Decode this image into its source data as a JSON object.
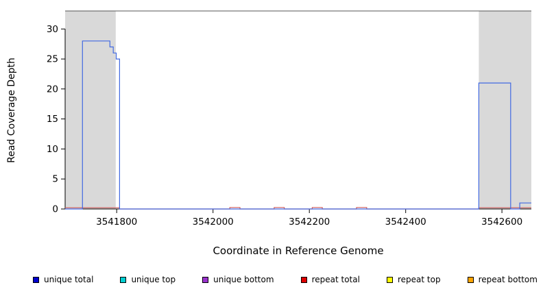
{
  "chart_data": {
    "type": "line",
    "title": "",
    "xlabel": "Coordinate in Reference Genome",
    "ylabel": "Read Coverage Depth",
    "xlim": [
      3541693,
      3542661
    ],
    "ylim": [
      0,
      33
    ],
    "xticks": [
      3541800,
      3542000,
      3542200,
      3542400,
      3542600
    ],
    "yticks": [
      0,
      5,
      10,
      15,
      20,
      25,
      30
    ],
    "grid": false,
    "legend_position": "bottom",
    "frame": {
      "top_border_color": "#555555",
      "axis_color": "#000000",
      "shading_color": "#d9d9d9"
    },
    "background_shading": [
      {
        "x0": 3541693,
        "x1": 3541798,
        "color": "#d9d9d9"
      },
      {
        "x0": 3542552,
        "x1": 3542661,
        "color": "#d9d9d9"
      }
    ],
    "series": [
      {
        "name": "repeat total",
        "color": "#cd5c5c",
        "step_points": [
          [
            3541693,
            0.2
          ],
          [
            3541806,
            0.2
          ],
          [
            3541806,
            0
          ],
          [
            3542035,
            0
          ],
          [
            3542035,
            0.25
          ],
          [
            3542056,
            0.25
          ],
          [
            3542056,
            0
          ],
          [
            3542127,
            0
          ],
          [
            3542127,
            0.25
          ],
          [
            3542148,
            0.25
          ],
          [
            3542148,
            0
          ],
          [
            3542206,
            0
          ],
          [
            3542206,
            0.25
          ],
          [
            3542227,
            0.25
          ],
          [
            3542227,
            0
          ],
          [
            3542298,
            0
          ],
          [
            3542298,
            0.25
          ],
          [
            3542319,
            0.25
          ],
          [
            3542319,
            0
          ],
          [
            3542552,
            0
          ],
          [
            3542552,
            0.2
          ],
          [
            3542661,
            0.2
          ]
        ]
      },
      {
        "name": "unique total",
        "color": "#4169e1",
        "step_points": [
          [
            3541693,
            0
          ],
          [
            3541729,
            0
          ],
          [
            3541729,
            28
          ],
          [
            3541786,
            28
          ],
          [
            3541786,
            27
          ],
          [
            3541793,
            27
          ],
          [
            3541793,
            26
          ],
          [
            3541799,
            26
          ],
          [
            3541799,
            25
          ],
          [
            3541806,
            25
          ],
          [
            3541806,
            0
          ],
          [
            3542552,
            0
          ],
          [
            3542552,
            21
          ],
          [
            3542618,
            21
          ],
          [
            3542618,
            0
          ],
          [
            3542637,
            0
          ],
          [
            3542637,
            1
          ],
          [
            3542661,
            1
          ]
        ]
      }
    ],
    "legend": [
      {
        "label": "unique total",
        "color": "#0000cd"
      },
      {
        "label": "unique top",
        "color": "#00ced1"
      },
      {
        "label": "unique bottom",
        "color": "#9932cc"
      },
      {
        "label": "repeat total",
        "color": "#dd0000"
      },
      {
        "label": "repeat top",
        "color": "#ffff00"
      },
      {
        "label": "repeat bottom",
        "color": "#ffa500"
      }
    ]
  }
}
